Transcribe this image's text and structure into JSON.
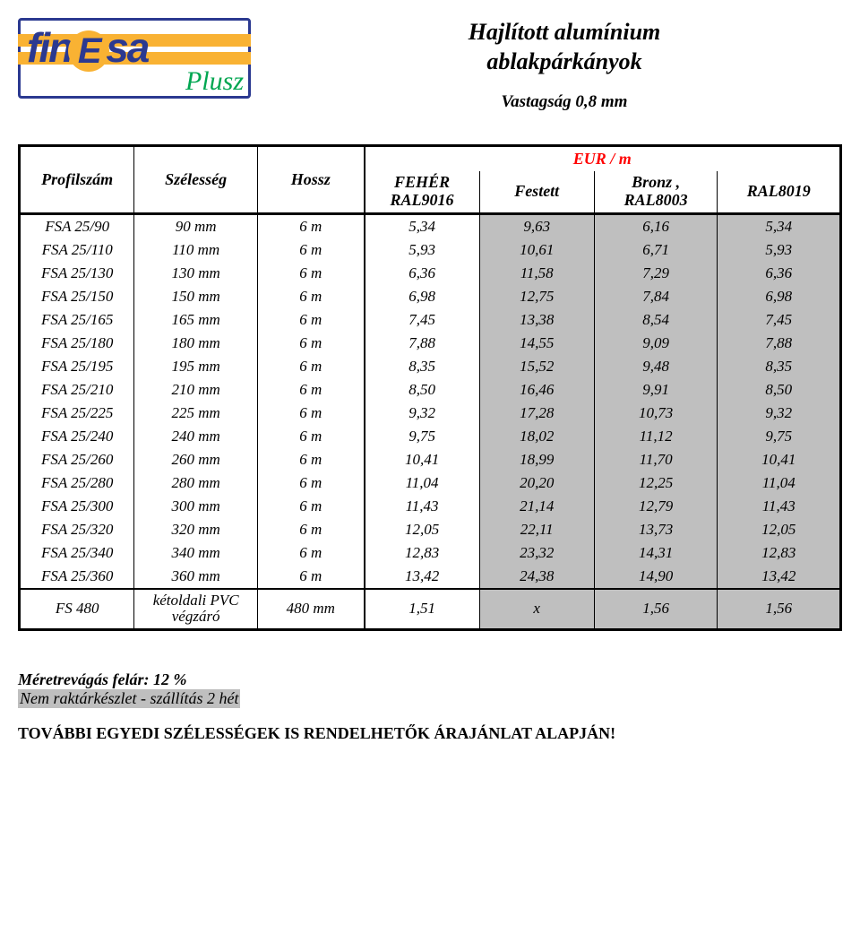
{
  "logo": {
    "main": "fin",
    "circle": "E",
    "tail": "sa",
    "sub": "Plusz"
  },
  "title_line1": "Hajlított alumínium",
  "title_line2": "ablakpárkányok",
  "subtitle": "Vastagság 0,8 mm",
  "header": {
    "profilszam": "Profilszám",
    "szelesseg": "Szélesség",
    "hossz": "Hossz",
    "eur": "EUR / m",
    "feher_l1": "FEHÉR",
    "feher_l2": "RAL9016",
    "festett": "Festett",
    "bronz_l1": "Bronz ,",
    "bronz_l2": "RAL8003",
    "ral8019": "RAL8019"
  },
  "rows": [
    {
      "p": "FSA 25/90",
      "w": "90 mm",
      "h": "6 m",
      "c1": "5,34",
      "c2": "9,63",
      "c3": "6,16",
      "c4": "5,34"
    },
    {
      "p": "FSA 25/110",
      "w": "110 mm",
      "h": "6 m",
      "c1": "5,93",
      "c2": "10,61",
      "c3": "6,71",
      "c4": "5,93"
    },
    {
      "p": "FSA 25/130",
      "w": "130 mm",
      "h": "6 m",
      "c1": "6,36",
      "c2": "11,58",
      "c3": "7,29",
      "c4": "6,36"
    },
    {
      "p": "FSA 25/150",
      "w": "150 mm",
      "h": "6 m",
      "c1": "6,98",
      "c2": "12,75",
      "c3": "7,84",
      "c4": "6,98"
    },
    {
      "p": "FSA 25/165",
      "w": "165 mm",
      "h": "6 m",
      "c1": "7,45",
      "c2": "13,38",
      "c3": "8,54",
      "c4": "7,45"
    },
    {
      "p": "FSA 25/180",
      "w": "180 mm",
      "h": "6 m",
      "c1": "7,88",
      "c2": "14,55",
      "c3": "9,09",
      "c4": "7,88"
    },
    {
      "p": "FSA 25/195",
      "w": "195 mm",
      "h": "6 m",
      "c1": "8,35",
      "c2": "15,52",
      "c3": "9,48",
      "c4": "8,35"
    },
    {
      "p": "FSA 25/210",
      "w": "210 mm",
      "h": "6 m",
      "c1": "8,50",
      "c2": "16,46",
      "c3": "9,91",
      "c4": "8,50"
    },
    {
      "p": "FSA 25/225",
      "w": "225 mm",
      "h": "6 m",
      "c1": "9,32",
      "c2": "17,28",
      "c3": "10,73",
      "c4": "9,32"
    },
    {
      "p": "FSA 25/240",
      "w": "240 mm",
      "h": "6 m",
      "c1": "9,75",
      "c2": "18,02",
      "c3": "11,12",
      "c4": "9,75"
    },
    {
      "p": "FSA 25/260",
      "w": "260 mm",
      "h": "6 m",
      "c1": "10,41",
      "c2": "18,99",
      "c3": "11,70",
      "c4": "10,41"
    },
    {
      "p": "FSA 25/280",
      "w": "280 mm",
      "h": "6 m",
      "c1": "11,04",
      "c2": "20,20",
      "c3": "12,25",
      "c4": "11,04"
    },
    {
      "p": "FSA 25/300",
      "w": "300 mm",
      "h": "6 m",
      "c1": "11,43",
      "c2": "21,14",
      "c3": "12,79",
      "c4": "11,43"
    },
    {
      "p": "FSA 25/320",
      "w": "320 mm",
      "h": "6 m",
      "c1": "12,05",
      "c2": "22,11",
      "c3": "13,73",
      "c4": "12,05"
    },
    {
      "p": "FSA 25/340",
      "w": "340 mm",
      "h": "6 m",
      "c1": "12,83",
      "c2": "23,32",
      "c3": "14,31",
      "c4": "12,83"
    },
    {
      "p": "FSA 25/360",
      "w": "360 mm",
      "h": "6 m",
      "c1": "13,42",
      "c2": "24,38",
      "c3": "14,90",
      "c4": "13,42"
    }
  ],
  "footer_row": {
    "p": "FS 480",
    "w_l1": "kétoldali PVC",
    "w_l2": "végzáró",
    "h": "480 mm",
    "c1": "1,51",
    "c2": "x",
    "c3": "1,56",
    "c4": "1,56"
  },
  "notes": {
    "surcharge": "Méretrevágás felár: 12 %",
    "stock": "Nem raktárkészlet - szállítás 2 hét",
    "final": "TOVÁBBI EGYEDI SZÉLESSÉGEK IS RENDELHETŐK ÁRAJÁNLAT ALAPJÁN!"
  },
  "colors": {
    "red": "#ff0000",
    "grey": "#bfbfbf",
    "navy": "#2b3990",
    "orange": "#f9b233",
    "green": "#00a651"
  }
}
